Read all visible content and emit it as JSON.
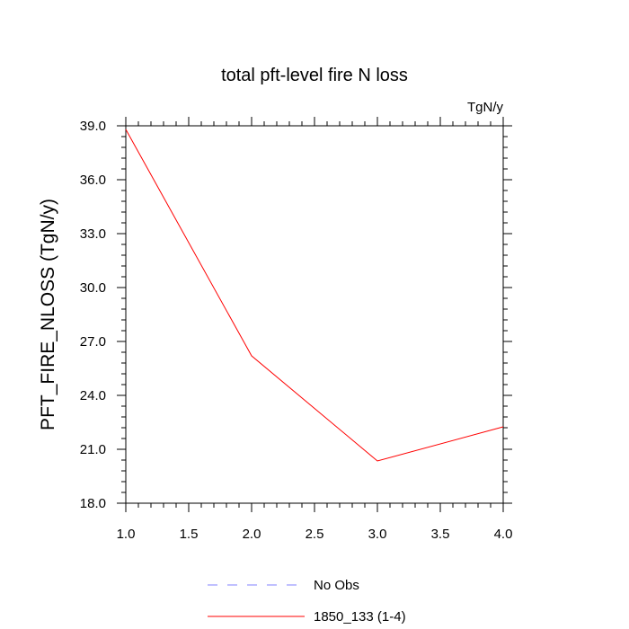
{
  "chart_data": {
    "type": "line",
    "title": "total pft-level fire N loss",
    "units": "TgN/y",
    "ylabel": "PFT_FIRE_NLOSS  (TgN/y)",
    "xlabel": "",
    "xlim": [
      1.0,
      4.0
    ],
    "ylim": [
      18.0,
      39.0
    ],
    "x_ticks": [
      "1.0",
      "1.5",
      "2.0",
      "2.5",
      "3.0",
      "3.5",
      "4.0"
    ],
    "y_ticks": [
      "18.0",
      "21.0",
      "24.0",
      "27.0",
      "30.0",
      "33.0",
      "36.0",
      "39.0"
    ],
    "grid": false,
    "legend_position": "bottom-center",
    "series": [
      {
        "name": "1850_133 (1-4)",
        "color": "#ff0000",
        "style": "solid",
        "x": [
          1.0,
          2.0,
          3.0,
          4.0
        ],
        "y": [
          38.8,
          26.2,
          20.35,
          22.25
        ]
      }
    ],
    "legend": [
      {
        "label": "No Obs",
        "color": "#8080ff",
        "style": "dashed"
      },
      {
        "label": "1850_133 (1-4)",
        "color": "#ff0000",
        "style": "solid"
      }
    ]
  }
}
